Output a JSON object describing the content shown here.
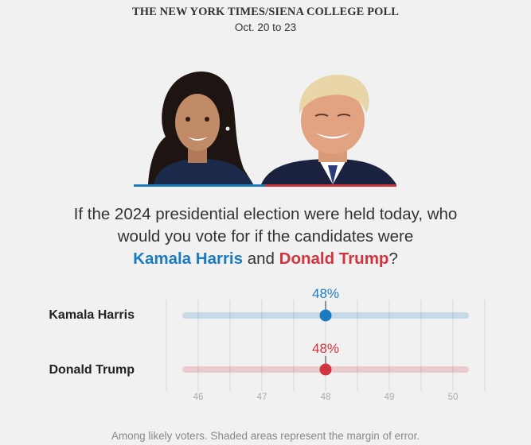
{
  "header": {
    "title": "THE NEW YORK TIMES/SIENA COLLEGE POLL",
    "dates": "Oct. 20 to 23"
  },
  "question": {
    "line1": "If the 2024 presidential election were held today, who",
    "line2": "would you vote for if the candidates were",
    "candidate1": "Kamala Harris",
    "joiner": " and ",
    "candidate2": "Donald Trump",
    "end": "?"
  },
  "colors": {
    "harris": "#1a7bbf",
    "trump": "#d0343e"
  },
  "chart_data": {
    "type": "scatter",
    "x_ticks": [
      46,
      47,
      48,
      49,
      50
    ],
    "xlim": [
      45.5,
      50.5
    ],
    "grid": true,
    "series": [
      {
        "name": "Kamala Harris",
        "value": 48,
        "value_label": "48%",
        "margin_low": 45.8,
        "margin_high": 50.2,
        "color": "#1a7bbf"
      },
      {
        "name": "Donald Trump",
        "value": 48,
        "value_label": "48%",
        "margin_low": 45.8,
        "margin_high": 50.2,
        "color": "#d0343e"
      }
    ]
  },
  "footnote": "Among likely voters. Shaded areas represent the margin of error."
}
